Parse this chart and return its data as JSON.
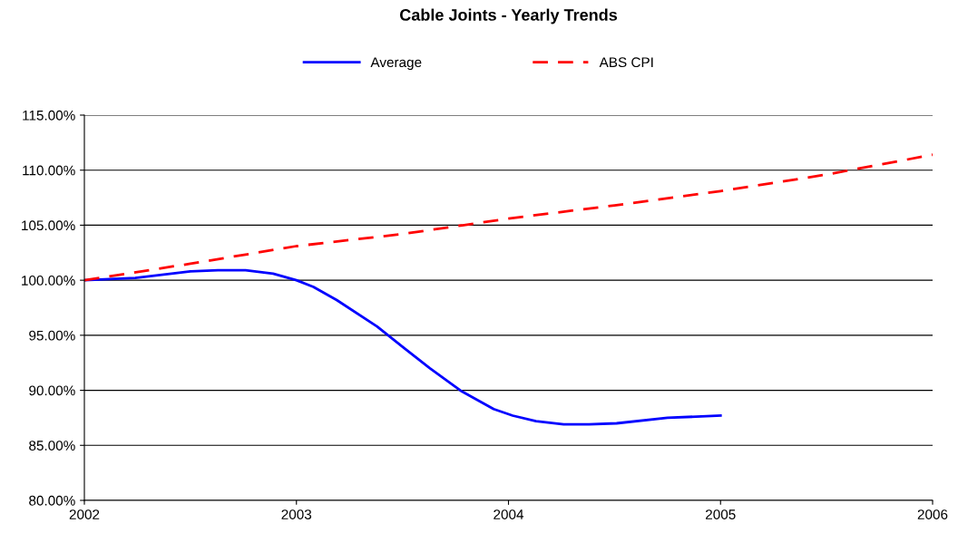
{
  "chart_data": {
    "type": "line",
    "title": "Cable Joints - Yearly Trends",
    "series": [
      {
        "name": "Average",
        "color": "#0000ff",
        "line_style": "solid",
        "x": [
          2002,
          2002.24,
          2002.5,
          2002.63,
          2002.76,
          2002.89,
          2003.0,
          2003.08,
          2003.19,
          2003.38,
          2003.51,
          2003.63,
          2003.78,
          2003.93,
          2004.02,
          2004.13,
          2004.26,
          2004.38,
          2004.51,
          2004.75,
          2005.0
        ],
        "values": [
          100,
          100.2,
          100.8,
          100.9,
          100.9,
          100.6,
          100.0,
          99.4,
          98.2,
          95.8,
          93.8,
          92.0,
          89.9,
          88.3,
          87.7,
          87.2,
          86.9,
          86.9,
          87.0,
          87.5,
          87.7
        ]
      },
      {
        "name": "ABS CPI",
        "color": "#ff0000",
        "line_style": "dashed",
        "x": [
          2002,
          2002.5,
          2003,
          2003.5,
          2004,
          2004.5,
          2005,
          2005.5,
          2006
        ],
        "values": [
          100,
          101.5,
          103.1,
          104.2,
          105.6,
          106.8,
          108.1,
          109.6,
          111.4
        ]
      }
    ],
    "xlim": [
      2002,
      2006
    ],
    "xticks": [
      2002,
      2003,
      2004,
      2005,
      2006
    ],
    "ylim": [
      80,
      115
    ],
    "yticks": [
      {
        "value": 80,
        "label": "80.00%"
      },
      {
        "value": 85,
        "label": "85.00%"
      },
      {
        "value": 90,
        "label": "90.00%"
      },
      {
        "value": 95,
        "label": "95.00%"
      },
      {
        "value": 100,
        "label": "100.00%"
      },
      {
        "value": 105,
        "label": "105.00%"
      },
      {
        "value": 110,
        "label": "110.00%"
      },
      {
        "value": 115,
        "label": "115.00%"
      }
    ],
    "grid": "y",
    "legend": "top",
    "marker": "none"
  }
}
